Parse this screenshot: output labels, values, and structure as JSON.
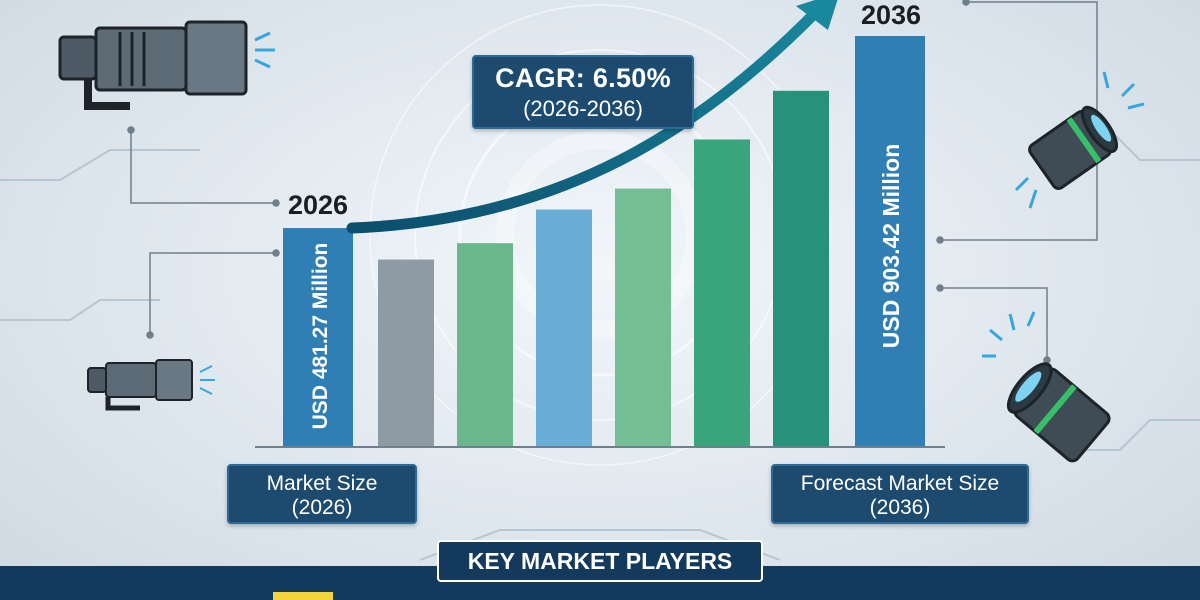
{
  "colors": {
    "navy": "#1d4a6f",
    "highlight_bar": "#2f7fb5",
    "arrow": "#0f6a86",
    "accent_yellow": "#f3d43a"
  },
  "icons": [
    "telephoto-lens-icon",
    "camera-lens-icon",
    "signal-waves-icon"
  ],
  "chart_data": {
    "type": "bar",
    "title": "",
    "xlabel": "",
    "ylabel": "",
    "grid": false,
    "legend": "none",
    "categories": [
      "2026",
      "",
      "",
      "",
      "",
      "",
      "",
      "2036"
    ],
    "values": [
      481.27,
      412,
      448,
      522,
      568,
      676,
      783,
      903.42
    ],
    "colors": [
      "#2f7fb5",
      "#8e9aa4",
      "#6ab68d",
      "#6aaed5",
      "#73be95",
      "#3aa57c",
      "#27917b",
      "#2f7fb5"
    ],
    "ylim": [
      0,
      903.42
    ],
    "start_label": "2026",
    "end_label": "2036",
    "start_value_label": "USD 481.27 Million",
    "end_value_label": "USD 903.42 Million",
    "cagr": {
      "label": "CAGR: 6.50%",
      "period": "(2026-2036)"
    },
    "market_size": {
      "line1": "Market Size",
      "line2": "(2026)"
    },
    "forecast_size": {
      "line1": "Forecast Market Size",
      "line2": "(2036)"
    },
    "key_players_label": "KEY MARKET PLAYERS"
  }
}
